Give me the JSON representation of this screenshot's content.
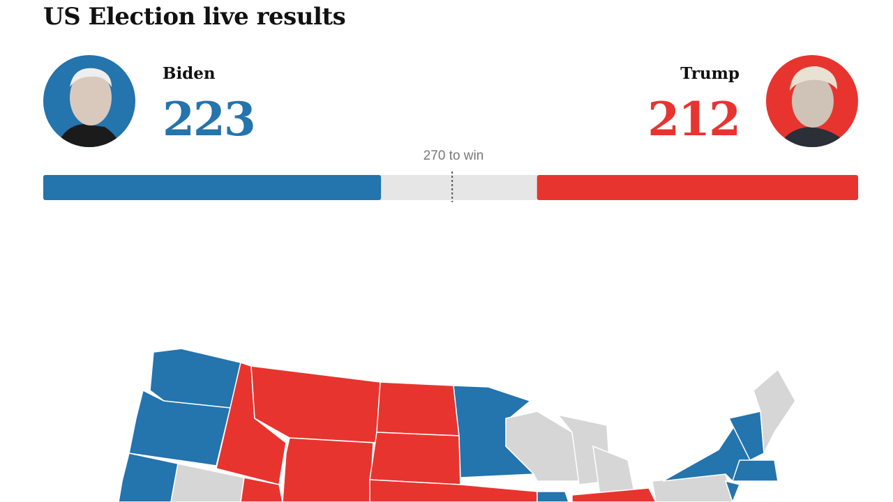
{
  "header": {
    "title": "US Election live results"
  },
  "candidates": [
    {
      "name": "Biden",
      "votes": 223,
      "color": "#2474ad"
    },
    {
      "name": "Trump",
      "votes": 212,
      "color": "#e8342f"
    }
  ],
  "bar": {
    "xlim": [
      0,
      538
    ],
    "threshold": {
      "value": 270,
      "label": "270 to win"
    }
  }
}
